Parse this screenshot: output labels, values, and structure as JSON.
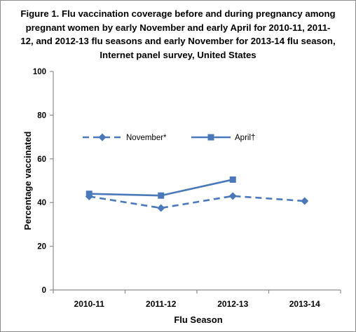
{
  "figure": {
    "title_lines": [
      "Figure 1.  Flu vaccination coverage before and during pregnancy among",
      "pregnant women by early November and early April for 2010-11,  2011-",
      "12, and 2012-13  flu seasons and early November for 2013-14 flu season,",
      "Internet panel survey, United States"
    ]
  },
  "chart_data": {
    "type": "line",
    "title": "Figure 1.  Flu vaccination coverage before and during pregnancy among pregnant women by early November and early April for 2010-11,  2011-12, and 2012-13  flu seasons and early November for 2013-14 flu season, Internet panel survey, United States",
    "categories": [
      "2010-11",
      "2011-12",
      "2012-13",
      "2013-14"
    ],
    "xlabel": "Flu Season",
    "ylabel": "Percentage vaccinated",
    "ylim": [
      0,
      100
    ],
    "yticks": [
      "0",
      "20",
      "40",
      "60",
      "80",
      "100"
    ],
    "grid": false,
    "legend_position": "top",
    "series": [
      {
        "name": "November*",
        "values": [
          42.8,
          37.5,
          43.0,
          40.7
        ],
        "line_style": "dashed",
        "marker": "diamond",
        "color": "#4a78b8"
      },
      {
        "name": "April†",
        "values": [
          44.0,
          43.2,
          50.5,
          null
        ],
        "line_style": "solid",
        "marker": "square",
        "color": "#4a78b8"
      }
    ]
  }
}
